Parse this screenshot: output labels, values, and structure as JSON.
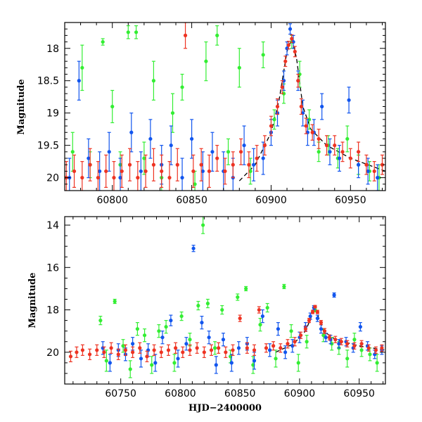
{
  "chart_data": [
    {
      "type": "scatter",
      "panel": "top",
      "title": "",
      "xlabel": "",
      "ylabel": "Magnitude",
      "xlim": [
        60770,
        60972
      ],
      "ylim": [
        20.2,
        17.6
      ],
      "y_inverted": true,
      "xticks": [
        60800,
        60850,
        60900,
        60950
      ],
      "xtick_labels": [
        "60800",
        "60850",
        "60900",
        "60950"
      ],
      "yticks": [
        18,
        18.5,
        19,
        19.5,
        20
      ],
      "ytick_labels": [
        "18",
        "18.5",
        "19",
        "19.5",
        "20"
      ],
      "grid": false,
      "legend": "none",
      "model_curve": {
        "color": "#000000",
        "style": "dashed",
        "x": [
          60880,
          60890,
          60900,
          60905,
          60910,
          60913,
          60916,
          60920,
          60925,
          60935,
          60950,
          60972
        ],
        "y": [
          20.05,
          19.8,
          19.3,
          18.8,
          18.05,
          17.85,
          18.15,
          18.9,
          19.25,
          19.5,
          19.7,
          19.9
        ]
      },
      "series": [
        {
          "color": "#33ee33",
          "x": [
            60775,
            60781,
            60786,
            60794,
            60800,
            60805,
            60810,
            60815,
            60820,
            60826,
            60831,
            60838,
            60844,
            60852,
            60859,
            60866,
            60873,
            60880,
            60887,
            60895,
            60902,
            60908,
            60913,
            60918,
            60924,
            60930,
            60936,
            60942,
            60948,
            60955,
            60962,
            60968
          ],
          "y": [
            19.6,
            18.3,
            19.8,
            17.9,
            18.9,
            19.8,
            17.75,
            17.75,
            19.7,
            18.5,
            20.0,
            19.0,
            18.6,
            20.1,
            18.2,
            17.8,
            19.6,
            18.3,
            19.9,
            18.1,
            19.1,
            18.7,
            17.9,
            18.4,
            19.1,
            19.6,
            19.5,
            19.7,
            19.4,
            19.8,
            19.9,
            20.0
          ],
          "err": [
            0.3,
            0.35,
            0.2,
            0.05,
            0.25,
            0.2,
            0.1,
            0.1,
            0.25,
            0.3,
            0.2,
            0.3,
            0.2,
            0.2,
            0.3,
            0.15,
            0.2,
            0.3,
            0.2,
            0.2,
            0.15,
            0.15,
            0.1,
            0.2,
            0.15,
            0.15,
            0.15,
            0.15,
            0.2,
            0.15,
            0.15,
            0.2
          ]
        },
        {
          "color": "#1155ee",
          "x": [
            60773,
            60779,
            60785,
            60792,
            60798,
            60805,
            60812,
            60818,
            60824,
            60831,
            60837,
            60844,
            60850,
            60857,
            60863,
            60870,
            60876,
            60883,
            60889,
            60895,
            60900,
            60904,
            60908,
            60910,
            60912,
            60914,
            60917,
            60920,
            60923,
            60927,
            60932,
            60937,
            60943,
            60949,
            60955,
            60961,
            60967
          ],
          "y": [
            20.0,
            18.5,
            19.7,
            19.9,
            19.6,
            20.0,
            19.3,
            19.9,
            19.4,
            19.8,
            19.5,
            20.0,
            19.4,
            19.9,
            19.6,
            19.9,
            20.0,
            19.5,
            19.8,
            19.7,
            19.3,
            19.0,
            18.5,
            18.0,
            17.7,
            17.9,
            18.5,
            19.0,
            19.3,
            19.3,
            18.9,
            19.6,
            19.7,
            18.8,
            19.8,
            19.9,
            20.0
          ],
          "err": [
            0.3,
            0.3,
            0.3,
            0.3,
            0.3,
            0.3,
            0.3,
            0.3,
            0.3,
            0.3,
            0.3,
            0.3,
            0.3,
            0.3,
            0.3,
            0.3,
            0.3,
            0.3,
            0.25,
            0.25,
            0.2,
            0.2,
            0.15,
            0.1,
            0.08,
            0.1,
            0.15,
            0.2,
            0.2,
            0.2,
            0.2,
            0.2,
            0.2,
            0.2,
            0.2,
            0.2,
            0.2
          ]
        },
        {
          "color": "#ee3322",
          "x": [
            60771,
            60776,
            60781,
            60786,
            60791,
            60796,
            60801,
            60806,
            60811,
            60816,
            60821,
            60826,
            60831,
            60836,
            60841,
            60846,
            60851,
            60856,
            60861,
            60866,
            60871,
            60876,
            60881,
            60886,
            60891,
            60896,
            60900,
            60904,
            60907,
            60909,
            60911,
            60913,
            60915,
            60917,
            60919,
            60922,
            60926,
            60930,
            60935,
            60940,
            60945,
            60950,
            60955,
            60960,
            60965,
            60970
          ],
          "y": [
            20.0,
            19.9,
            20.0,
            19.8,
            20.0,
            19.9,
            20.0,
            19.9,
            19.8,
            20.0,
            19.9,
            19.8,
            19.9,
            20.0,
            19.8,
            17.8,
            19.9,
            19.8,
            19.9,
            19.7,
            19.9,
            19.8,
            19.6,
            19.8,
            19.7,
            19.5,
            19.2,
            18.9,
            18.6,
            18.2,
            17.95,
            17.85,
            18.05,
            18.5,
            18.9,
            19.2,
            19.3,
            19.4,
            19.5,
            19.5,
            19.6,
            19.7,
            19.6,
            19.8,
            19.9,
            19.8
          ],
          "err": [
            0.25,
            0.25,
            0.25,
            0.25,
            0.25,
            0.25,
            0.25,
            0.25,
            0.25,
            0.25,
            0.25,
            0.25,
            0.25,
            0.25,
            0.25,
            0.2,
            0.25,
            0.25,
            0.25,
            0.2,
            0.2,
            0.2,
            0.2,
            0.2,
            0.2,
            0.15,
            0.15,
            0.12,
            0.1,
            0.08,
            0.06,
            0.06,
            0.08,
            0.1,
            0.12,
            0.12,
            0.12,
            0.15,
            0.15,
            0.15,
            0.15,
            0.15,
            0.15,
            0.15,
            0.15,
            0.15
          ]
        }
      ]
    },
    {
      "type": "scatter",
      "panel": "bottom",
      "title": "",
      "xlabel": "HJD−2400000",
      "ylabel": "Magnitude",
      "xlim": [
        60703,
        60972
      ],
      "ylim": [
        21.5,
        13.6
      ],
      "y_inverted": true,
      "xticks": [
        60750,
        60800,
        60850,
        60900,
        60950
      ],
      "xtick_labels": [
        "60750",
        "60800",
        "60850",
        "60900",
        "60950"
      ],
      "yticks": [
        14,
        16,
        18,
        20
      ],
      "ytick_labels": [
        "14",
        "16",
        "18",
        "20"
      ],
      "grid": false,
      "legend": "none",
      "model_curve": {
        "color": "#000000",
        "style": "dashed",
        "x": [
          60880,
          60895,
          60905,
          60913,
          60920,
          60930,
          60950,
          60972
        ],
        "y": [
          20.0,
          19.6,
          19.0,
          17.9,
          19.0,
          19.4,
          19.7,
          19.9
        ]
      },
      "series": [
        {
          "color": "#33ee33",
          "x": [
            60733,
            60738,
            60745,
            60752,
            60758,
            60764,
            60770,
            60776,
            60782,
            60788,
            60795,
            60801,
            60808,
            60815,
            60819,
            60823,
            60829,
            60835,
            60842,
            60848,
            60855,
            60861,
            60867,
            60873,
            60880,
            60887,
            60893,
            60899,
            60906,
            60913,
            60920,
            60927,
            60933,
            60940,
            60946,
            60952,
            60959,
            60965
          ],
          "y": [
            18.5,
            20.4,
            17.6,
            19.7,
            20.8,
            18.9,
            19.2,
            20.6,
            19.0,
            18.8,
            20.5,
            18.3,
            19.4,
            17.8,
            14.0,
            17.7,
            19.8,
            18.0,
            20.2,
            17.4,
            17.0,
            20.6,
            18.7,
            17.9,
            20.3,
            16.9,
            19.0,
            20.5,
            19.5,
            18.0,
            19.2,
            19.6,
            19.8,
            20.3,
            19.4,
            19.9,
            20.1,
            20.5
          ],
          "err": [
            0.2,
            0.5,
            0.1,
            0.3,
            0.4,
            0.3,
            0.3,
            0.4,
            0.3,
            0.3,
            0.4,
            0.2,
            0.3,
            0.2,
            0.4,
            0.2,
            0.3,
            0.2,
            0.3,
            0.15,
            0.1,
            0.4,
            0.3,
            0.2,
            0.4,
            0.1,
            0.3,
            0.4,
            0.3,
            0.1,
            0.3,
            0.3,
            0.3,
            0.4,
            0.3,
            0.3,
            0.3,
            0.4
          ]
        },
        {
          "color": "#1155ee",
          "x": [
            60735,
            60741,
            60748,
            60754,
            60760,
            60767,
            60773,
            60779,
            60785,
            60792,
            60798,
            60805,
            60811,
            60818,
            60824,
            60830,
            60836,
            60843,
            60849,
            60856,
            60862,
            60869,
            60875,
            60882,
            60888,
            60894,
            60900,
            60905,
            60909,
            60912,
            60915,
            60918,
            60922,
            60926,
            60929,
            60933,
            60939,
            60945,
            60951,
            60957,
            60963,
            60969
          ],
          "y": [
            19.8,
            20.5,
            19.9,
            20.1,
            19.6,
            20.3,
            19.9,
            20.5,
            19.3,
            18.5,
            20.3,
            19.6,
            15.1,
            18.6,
            19.3,
            20.6,
            19.4,
            20.5,
            19.8,
            19.6,
            20.4,
            18.3,
            19.9,
            18.9,
            20.0,
            19.7,
            19.3,
            18.8,
            18.3,
            17.9,
            18.4,
            18.9,
            19.3,
            19.4,
            17.3,
            19.6,
            19.5,
            19.8,
            18.8,
            19.7,
            20.1,
            19.9
          ],
          "err": [
            0.3,
            0.4,
            0.3,
            0.3,
            0.3,
            0.4,
            0.3,
            0.4,
            0.3,
            0.25,
            0.4,
            0.3,
            0.15,
            0.3,
            0.3,
            0.4,
            0.3,
            0.4,
            0.3,
            0.3,
            0.4,
            0.3,
            0.3,
            0.3,
            0.3,
            0.3,
            0.25,
            0.2,
            0.15,
            0.1,
            0.15,
            0.2,
            0.2,
            0.2,
            0.1,
            0.2,
            0.2,
            0.2,
            0.2,
            0.2,
            0.2,
            0.2
          ]
        },
        {
          "color": "#ee3322",
          "x": [
            60708,
            60713,
            60718,
            60724,
            60730,
            60736,
            60742,
            60748,
            60754,
            60760,
            60766,
            60772,
            60778,
            60784,
            60790,
            60796,
            60802,
            60808,
            60814,
            60820,
            60826,
            60832,
            60838,
            60844,
            60850,
            60856,
            60862,
            60866,
            60872,
            60878,
            60884,
            60890,
            60896,
            60901,
            60905,
            60908,
            60911,
            60913,
            60915,
            60918,
            60921,
            60925,
            60930,
            60935,
            60940,
            60946,
            60952,
            60958,
            60964,
            60969
          ],
          "y": [
            20.2,
            20.0,
            19.9,
            20.1,
            19.9,
            20.0,
            19.8,
            20.1,
            19.9,
            20.0,
            19.8,
            20.2,
            19.9,
            20.0,
            19.9,
            19.8,
            20.0,
            19.9,
            19.8,
            20.0,
            19.9,
            19.8,
            20.0,
            19.9,
            18.4,
            19.8,
            19.9,
            18.0,
            19.8,
            19.7,
            19.8,
            19.6,
            19.5,
            19.2,
            18.9,
            18.5,
            18.1,
            17.85,
            18.1,
            18.6,
            19.0,
            19.3,
            19.4,
            19.5,
            19.6,
            19.7,
            19.6,
            19.8,
            19.9,
            19.8
          ],
          "err": [
            0.25,
            0.25,
            0.25,
            0.25,
            0.25,
            0.25,
            0.25,
            0.25,
            0.25,
            0.25,
            0.25,
            0.25,
            0.25,
            0.25,
            0.25,
            0.25,
            0.25,
            0.25,
            0.25,
            0.25,
            0.25,
            0.25,
            0.25,
            0.25,
            0.15,
            0.25,
            0.25,
            0.15,
            0.2,
            0.2,
            0.2,
            0.2,
            0.2,
            0.15,
            0.12,
            0.1,
            0.08,
            0.06,
            0.08,
            0.1,
            0.12,
            0.12,
            0.15,
            0.15,
            0.15,
            0.15,
            0.15,
            0.15,
            0.15,
            0.15
          ]
        }
      ]
    }
  ]
}
